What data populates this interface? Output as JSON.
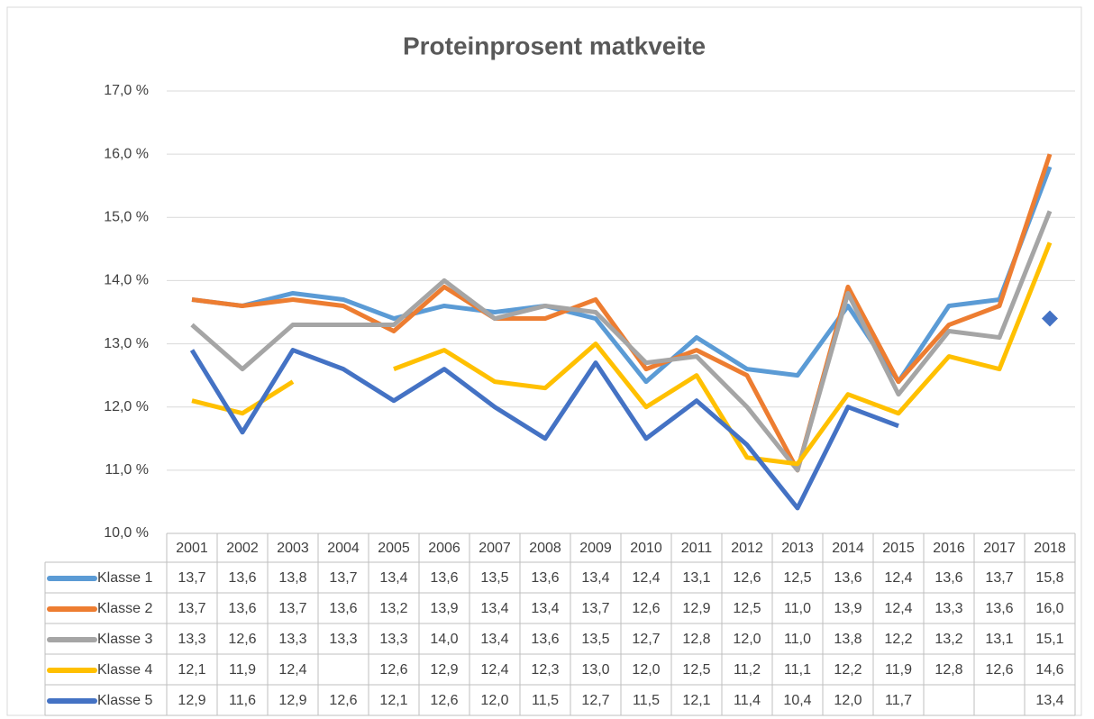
{
  "chart_data": {
    "type": "line",
    "title": "Proteinprosent  matkveite",
    "categories": [
      "2001",
      "2002",
      "2003",
      "2004",
      "2005",
      "2006",
      "2007",
      "2008",
      "2009",
      "2010",
      "2011",
      "2012",
      "2013",
      "2014",
      "2015",
      "2016",
      "2017",
      "2018"
    ],
    "ylim": [
      10,
      17
    ],
    "yticks": [
      {
        "value": 10,
        "label": "10,0 %"
      },
      {
        "value": 11,
        "label": "11,0 %"
      },
      {
        "value": 12,
        "label": "12,0 %"
      },
      {
        "value": 13,
        "label": "13,0 %"
      },
      {
        "value": 14,
        "label": "14,0 %"
      },
      {
        "value": 15,
        "label": "15,0 %"
      },
      {
        "value": 16,
        "label": "16,0 %"
      },
      {
        "value": 17,
        "label": "17,0 %"
      }
    ],
    "grid": true,
    "series": [
      {
        "name": "Klasse 1",
        "color": "#5b9bd5",
        "values": [
          13.7,
          13.6,
          13.8,
          13.7,
          13.4,
          13.6,
          13.5,
          13.6,
          13.4,
          12.4,
          13.1,
          12.6,
          12.5,
          13.6,
          12.4,
          13.6,
          13.7,
          15.8
        ],
        "value_labels": [
          "13,7",
          "13,6",
          "13,8",
          "13,7",
          "13,4",
          "13,6",
          "13,5",
          "13,6",
          "13,4",
          "12,4",
          "13,1",
          "12,6",
          "12,5",
          "13,6",
          "12,4",
          "13,6",
          "13,7",
          "15,8"
        ]
      },
      {
        "name": "Klasse 2",
        "color": "#ed7d31",
        "values": [
          13.7,
          13.6,
          13.7,
          13.6,
          13.2,
          13.9,
          13.4,
          13.4,
          13.7,
          12.6,
          12.9,
          12.5,
          11.0,
          13.9,
          12.4,
          13.3,
          13.6,
          16.0
        ],
        "value_labels": [
          "13,7",
          "13,6",
          "13,7",
          "13,6",
          "13,2",
          "13,9",
          "13,4",
          "13,4",
          "13,7",
          "12,6",
          "12,9",
          "12,5",
          "11,0",
          "13,9",
          "12,4",
          "13,3",
          "13,6",
          "16,0"
        ]
      },
      {
        "name": "Klasse 3",
        "color": "#a5a5a5",
        "values": [
          13.3,
          12.6,
          13.3,
          13.3,
          13.3,
          14.0,
          13.4,
          13.6,
          13.5,
          12.7,
          12.8,
          12.0,
          11.0,
          13.8,
          12.2,
          13.2,
          13.1,
          15.1
        ],
        "value_labels": [
          "13,3",
          "12,6",
          "13,3",
          "13,3",
          "13,3",
          "14,0",
          "13,4",
          "13,6",
          "13,5",
          "12,7",
          "12,8",
          "12,0",
          "11,0",
          "13,8",
          "12,2",
          "13,2",
          "13,1",
          "15,1"
        ]
      },
      {
        "name": "Klasse 4",
        "color": "#ffc000",
        "values": [
          12.1,
          11.9,
          12.4,
          null,
          12.6,
          12.9,
          12.4,
          12.3,
          13.0,
          12.0,
          12.5,
          11.2,
          11.1,
          12.2,
          11.9,
          12.8,
          12.6,
          14.6
        ],
        "value_labels": [
          "12,1",
          "11,9",
          "12,4",
          null,
          "12,6",
          "12,9",
          "12,4",
          "12,3",
          "13,0",
          "12,0",
          "12,5",
          "11,2",
          "11,1",
          "12,2",
          "11,9",
          "12,8",
          "12,6",
          "14,6"
        ]
      },
      {
        "name": "Klasse 5",
        "color": "#4472c4",
        "values": [
          12.9,
          11.6,
          12.9,
          12.6,
          12.1,
          12.6,
          12.0,
          11.5,
          12.7,
          11.5,
          12.1,
          11.4,
          10.4,
          12.0,
          11.7,
          null,
          null,
          13.4
        ],
        "value_labels": [
          "12,9",
          "11,6",
          "12,9",
          "12,6",
          "12,1",
          "12,6",
          "12,0",
          "11,5",
          "12,7",
          "11,5",
          "12,1",
          "11,4",
          "10,4",
          "12,0",
          "11,7",
          null,
          null,
          "13,4"
        ]
      }
    ]
  }
}
